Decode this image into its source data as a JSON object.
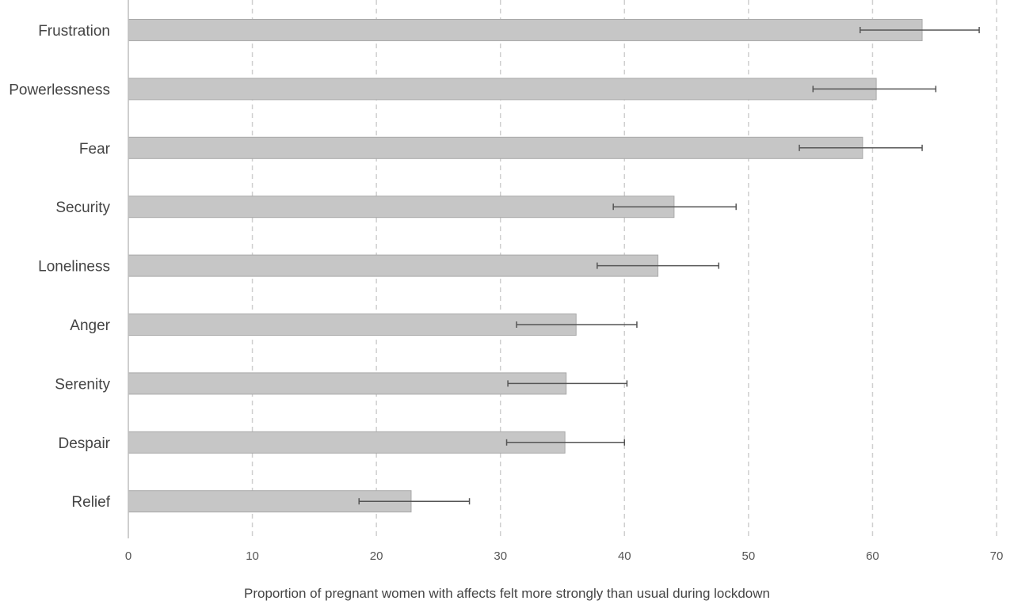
{
  "chart_data": {
    "type": "bar",
    "orientation": "horizontal",
    "categories": [
      "Frustration",
      "Powerlessness",
      "Fear",
      "Security",
      "Loneliness",
      "Anger",
      "Serenity",
      "Despair",
      "Relief"
    ],
    "values": [
      64.0,
      60.3,
      59.2,
      44.0,
      42.7,
      36.1,
      35.3,
      35.2,
      22.8
    ],
    "error_low": [
      59.0,
      55.2,
      54.1,
      39.1,
      37.8,
      31.3,
      30.6,
      30.5,
      18.6
    ],
    "error_high": [
      68.6,
      65.1,
      64.0,
      49.0,
      47.6,
      41.0,
      40.2,
      40.0,
      27.5
    ],
    "xlabel": "Proportion of pregnant women with affects felt more strongly than usual during lockdown",
    "ylabel": "",
    "xlim": [
      0,
      70
    ],
    "xticks": [
      "0",
      "10",
      "20",
      "30",
      "40",
      "50",
      "60",
      "70"
    ],
    "grid": "vertical dashed",
    "bar_color": "#c6c6c6",
    "bar_edge_color": "#a9a9a9",
    "error_bar_color": "#555555",
    "grid_color": "#cfcfcf"
  }
}
